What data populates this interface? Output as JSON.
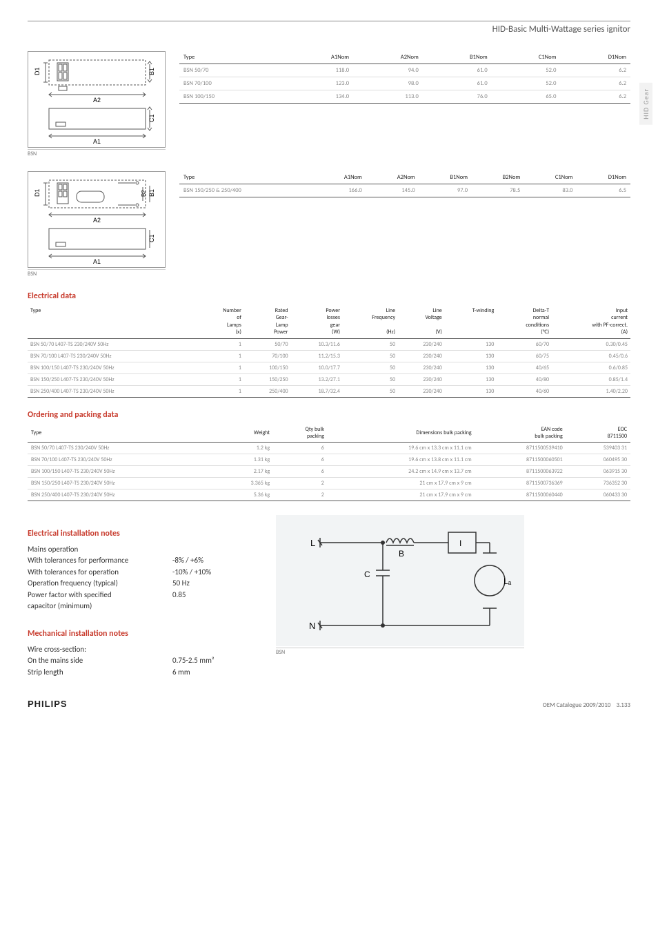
{
  "header": {
    "title": "HID-Basic Multi-Wattage series ignitor"
  },
  "side_tab": "HID Gear",
  "diagram1": {
    "caption": "BSN",
    "labels": {
      "D1": "D1",
      "B1": "B1",
      "A2": "A2",
      "C1": "C1",
      "A1": "A1"
    }
  },
  "table1": {
    "headers": [
      "Type",
      "A1Nom",
      "A2Nom",
      "B1Nom",
      "C1Nom",
      "D1Nom"
    ],
    "rows": [
      [
        "BSN 50/70",
        "118.0",
        "94.0",
        "61.0",
        "52.0",
        "6.2"
      ],
      [
        "BSN 70/100",
        "123.0",
        "98.0",
        "61.0",
        "52.0",
        "6.2"
      ],
      [
        "BSN 100/150",
        "134.0",
        "113.0",
        "76.0",
        "65.0",
        "6.2"
      ]
    ]
  },
  "diagram2": {
    "caption": "BSN",
    "labels": {
      "D1": "D1",
      "B2": "B2",
      "B1": "B1",
      "A2": "A2",
      "C1": "C1",
      "A1": "A1"
    }
  },
  "table2": {
    "headers": [
      "Type",
      "A1Nom",
      "A2Nom",
      "B1Nom",
      "B2Nom",
      "C1Nom",
      "D1Nom"
    ],
    "rows": [
      [
        "BSN 150/250 & 250/400",
        "166.0",
        "145.0",
        "97.0",
        "78.5",
        "83.0",
        "6.5"
      ]
    ]
  },
  "electrical": {
    "heading": "Electrical data",
    "headers": [
      "Type",
      "Number\nof\nLamps\n(x)",
      "Rated\nGear-\nLamp\nPower",
      "Power\nlosses\ngear\n(W)",
      "Line\nFrequency\n\n(Hz)",
      "Line\nVoltage\n\n(V)",
      "T-winding",
      "Delta-T\nnormal\nconditions\n(°C)",
      "Input\ncurrent\nwith PF-correct.\n(A)"
    ],
    "rows": [
      [
        "BSN 50/70 L407-TS 230/240V 50Hz",
        "1",
        "50/70",
        "10.3/11.6",
        "50",
        "230/240",
        "130",
        "60/70",
        "0.30/0.45"
      ],
      [
        "BSN 70/100 L407-TS 230/240V 50Hz",
        "1",
        "70/100",
        "11.2/15.3",
        "50",
        "230/240",
        "130",
        "60/75",
        "0.45/0.6"
      ],
      [
        "BSN 100/150 L407-TS 230/240V 50Hz",
        "1",
        "100/150",
        "10.0/17.7",
        "50",
        "230/240",
        "130",
        "40/65",
        "0.6/0.85"
      ],
      [
        "BSN 150/250 L407-TS 230/240V 50Hz",
        "1",
        "150/250",
        "13.2/27.1",
        "50",
        "230/240",
        "130",
        "40/80",
        "0.85/1.4"
      ],
      [
        "BSN 250/400 L407-TS 230/240V 50Hz",
        "1",
        "250/400",
        "18.7/32.4",
        "50",
        "230/240",
        "130",
        "40/60",
        "1.40/2.20"
      ]
    ]
  },
  "ordering": {
    "heading": "Ordering and packing data",
    "headers": [
      "Type",
      "Weight",
      "Qty bulk\npacking",
      "Dimensions bulk packing",
      "EAN code\nbulk packing",
      "EOC\n8711500"
    ],
    "rows": [
      [
        "BSN 50/70 L407-TS 230/240V 50Hz",
        "1.2 kg",
        "6",
        "19.6 cm x 13.3 cm x 11.1 cm",
        "8711500539410",
        "539403 31"
      ],
      [
        "BSN 70/100 L407-TS 230/240V 50Hz",
        "1.31 kg",
        "6",
        "19.6 cm x 13.8 cm x 11.1 cm",
        "8711500060501",
        "060495 30"
      ],
      [
        "BSN 100/150 L407-TS 230/240V 50Hz",
        "2.17 kg",
        "6",
        "24.2 cm x 14.9 cm x 13.7 cm",
        "8711500063922",
        "063915 30"
      ],
      [
        "BSN 150/250 L407-TS 230/240V 50Hz",
        "3.365 kg",
        "2",
        "21 cm x 17.9 cm x 9 cm",
        "8711500736369",
        "736352 30"
      ],
      [
        "BSN 250/400 L407-TS 230/240V 50Hz",
        "5.36 kg",
        "2",
        "21 cm x 17.9 cm x 9 cm",
        "8711500060440",
        "060433 30"
      ]
    ]
  },
  "elec_notes": {
    "heading": "Electrical installation notes",
    "lines": [
      [
        "Mains operation",
        ""
      ],
      [
        "With tolerances for performance",
        "-8% / +6%"
      ],
      [
        "With tolerances for operation",
        "-10% / +10%"
      ],
      [
        "Operation frequency (typical)",
        "50 Hz"
      ],
      [
        "Power factor with specified",
        "0.85"
      ],
      [
        "capacitor (minimum)",
        ""
      ]
    ]
  },
  "mech_notes": {
    "heading": "Mechanical installation notes",
    "lines": [
      [
        "Wire cross-section:",
        ""
      ],
      [
        "On the mains side",
        "0.75-2.5 mm²"
      ],
      [
        "Strip length",
        "6 mm"
      ]
    ]
  },
  "circuit": {
    "caption": "BSN",
    "labels": {
      "L": "L",
      "N": "N",
      "B": "B",
      "C": "C",
      "I": "I",
      "La": "La"
    }
  },
  "footer": {
    "brand": "PHILIPS",
    "catalog": "OEM Catalogue 2009/2010",
    "page": "3.133"
  },
  "colors": {
    "red": "#c83c2e",
    "grey": "#888",
    "lightgrey": "#ddd",
    "bg_circuit": "#f2f4f5"
  }
}
